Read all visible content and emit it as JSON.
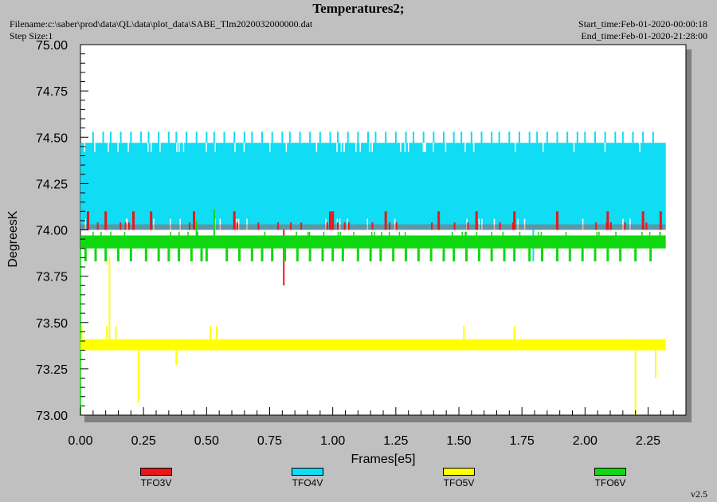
{
  "header": {
    "title": "Temperatures2;",
    "filename": "Filename:c:\\saber\\prod\\data\\QL\\data\\plot_data\\SABE_Tlm2020032000000.dat",
    "step_size": "Step Size:1",
    "start_time": "Start_time:Feb-01-2020-00:00:18",
    "end_time": "End_time:Feb-01-2020-21:28:00"
  },
  "version": "v2.5",
  "chart_data": {
    "type": "line",
    "title": "Temperatures2;",
    "xlabel": "Frames[e5]",
    "ylabel": "DegreesK",
    "xlim": [
      0.0,
      2.4
    ],
    "ylim": [
      73.0,
      75.0
    ],
    "x_ticks": [
      "0.00",
      "0.25",
      "0.50",
      "0.75",
      "1.00",
      "1.25",
      "1.50",
      "1.75",
      "2.00",
      "2.25"
    ],
    "y_ticks": [
      "73.00",
      "73.25",
      "73.50",
      "73.75",
      "74.00",
      "74.25",
      "74.50",
      "74.75",
      "75.00"
    ],
    "grid": false,
    "legend_position": "bottom",
    "series": [
      {
        "name": "TFO3V",
        "color": "#e81818",
        "x": [
          0.0,
          2.32
        ],
        "typical_range": [
          74.0,
          74.03
        ],
        "spikes_high": [
          0.03,
          0.1,
          0.21,
          0.28,
          0.45,
          0.61,
          0.99,
          1.0,
          1.21,
          1.42,
          1.57,
          1.72,
          1.89,
          2.09,
          2.23,
          2.3
        ],
        "spikes_high_value": 74.1,
        "dropouts": [
          {
            "x": 0.806,
            "y": 73.7
          }
        ]
      },
      {
        "name": "TFO4V",
        "color": "#10dcf4",
        "x": [
          0.0,
          2.32
        ],
        "typical_range": [
          74.0,
          74.47
        ],
        "upper_spike_value": 74.53,
        "upper_spikes": [
          0.05,
          0.09,
          0.12,
          0.16,
          0.2,
          0.24,
          0.27,
          0.31,
          0.35,
          0.38,
          0.42,
          0.46,
          0.5,
          0.53,
          0.57,
          0.61,
          0.65,
          0.68,
          0.72,
          0.76,
          0.8,
          0.83,
          0.87,
          0.91,
          0.95,
          0.99,
          1.02,
          1.06,
          1.1,
          1.14,
          1.17,
          1.21,
          1.25,
          1.29,
          1.32,
          1.36,
          1.4,
          1.44,
          1.48,
          1.51,
          1.55,
          1.59,
          1.63,
          1.66,
          1.7,
          1.74,
          1.78,
          1.81,
          1.85,
          1.89,
          1.93,
          1.97,
          2.0,
          2.04,
          2.08,
          2.12,
          2.15,
          2.19,
          2.23,
          2.27
        ],
        "dropouts": [
          {
            "x": 1.795,
            "y": 73.83
          }
        ]
      },
      {
        "name": "TFO5V",
        "color": "#ffff00",
        "x": [
          0.0,
          2.32
        ],
        "typical_range": [
          73.35,
          73.41
        ],
        "spikes_high": [
          {
            "x": 0.115,
            "y": 73.85
          },
          {
            "x": 0.005,
            "y": 73.48
          },
          {
            "x": 0.105,
            "y": 73.48
          },
          {
            "x": 0.14,
            "y": 73.48
          },
          {
            "x": 0.515,
            "y": 73.48
          },
          {
            "x": 0.54,
            "y": 73.48
          },
          {
            "x": 1.52,
            "y": 73.48
          },
          {
            "x": 1.72,
            "y": 73.48
          }
        ],
        "dropouts": [
          {
            "x": 0.23,
            "y": 73.07
          },
          {
            "x": 0.38,
            "y": 73.27
          },
          {
            "x": 2.2,
            "y": 73.0
          },
          {
            "x": 2.28,
            "y": 73.2
          }
        ]
      },
      {
        "name": "TFO6V",
        "color": "#10d810",
        "x": [
          0.0,
          2.32
        ],
        "typical_range": [
          73.9,
          73.97
        ],
        "start_dip": {
          "x": 0.0,
          "y": 73.0
        },
        "spikes_high": [
          {
            "x": 0.53,
            "y": 74.11
          },
          {
            "x": 0.46,
            "y": 74.05
          }
        ],
        "low_value": 73.83,
        "low_spikes": [
          0.02,
          0.06,
          0.1,
          0.15,
          0.2,
          0.26,
          0.31,
          0.35,
          0.39,
          0.44,
          0.48,
          0.5,
          0.58,
          0.63,
          0.68,
          0.72,
          0.76,
          0.81,
          0.86,
          0.91,
          0.96,
          1.0,
          1.04,
          1.1,
          1.15,
          1.19,
          1.24,
          1.29,
          1.34,
          1.39,
          1.44,
          1.48,
          1.53,
          1.58,
          1.63,
          1.68,
          1.72,
          1.78,
          1.83,
          1.89,
          1.94,
          1.99,
          2.04,
          2.09,
          2.14,
          2.2,
          2.26
        ]
      }
    ]
  }
}
